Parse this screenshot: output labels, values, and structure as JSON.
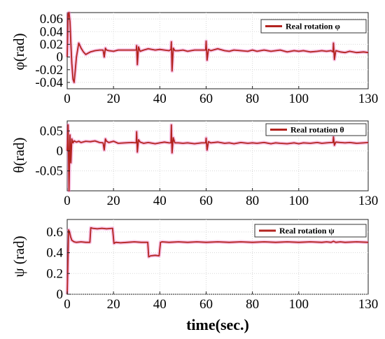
{
  "chart_data": [
    {
      "type": "line",
      "ylabel": "φ(rad)",
      "xlabel": "",
      "xlim": [
        0,
        130
      ],
      "ylim": [
        -0.05,
        0.07
      ],
      "xticks": [
        "0",
        "20",
        "40",
        "60",
        "80",
        "100",
        "130"
      ],
      "yticks": [
        "0.06",
        "0.04",
        "0.02",
        "0",
        "-0.02",
        "-0.04"
      ],
      "grid": true,
      "legend_position": "top-right",
      "series": [
        {
          "name": "Real rotation φ",
          "color": "#b3231f",
          "x": [
            0,
            0.4,
            0.8,
            1.2,
            1.6,
            2.0,
            2.5,
            3.0,
            3.5,
            4.0,
            5.0,
            6.0,
            7.0,
            8.0,
            9.0,
            10,
            12,
            14,
            15.5,
            16,
            16.5,
            17,
            18,
            20,
            22,
            25,
            28,
            29.8,
            30,
            30.3,
            30.8,
            31.5,
            33,
            35,
            38,
            40,
            42,
            44,
            44.8,
            45,
            45.3,
            45.8,
            46.5,
            48,
            50,
            52,
            55,
            58,
            59.8,
            60,
            60.4,
            61,
            62,
            65,
            68,
            70,
            72,
            75,
            78,
            80,
            82,
            85,
            88,
            90,
            92,
            95,
            98,
            100,
            102,
            105,
            108,
            110,
            112,
            114,
            114.8,
            115,
            115.4,
            116,
            118,
            120,
            122,
            125,
            128,
            130
          ],
          "y": [
            0.0,
            0.068,
            0.07,
            0.055,
            0.02,
            -0.01,
            -0.035,
            -0.04,
            -0.02,
            0.0,
            0.022,
            0.014,
            0.008,
            0.004,
            0.006,
            0.008,
            0.01,
            0.011,
            0.011,
            0.0,
            0.014,
            0.011,
            0.01,
            0.009,
            0.011,
            0.011,
            0.011,
            0.011,
            0.018,
            -0.012,
            0.016,
            0.009,
            0.011,
            0.013,
            0.011,
            0.012,
            0.011,
            0.01,
            0.012,
            0.024,
            -0.022,
            0.014,
            0.01,
            0.01,
            0.011,
            0.009,
            0.011,
            0.011,
            0.011,
            0.025,
            -0.005,
            0.012,
            0.01,
            0.013,
            0.01,
            0.009,
            0.011,
            0.01,
            0.009,
            0.011,
            0.009,
            0.011,
            0.009,
            0.01,
            0.011,
            0.008,
            0.01,
            0.009,
            0.01,
            0.008,
            0.009,
            0.01,
            0.009,
            0.01,
            0.008,
            0.022,
            -0.004,
            0.01,
            0.008,
            0.007,
            0.009,
            0.007,
            0.008,
            0.007
          ]
        }
      ]
    },
    {
      "type": "line",
      "ylabel": "θ(rad)",
      "xlabel": "",
      "xlim": [
        0,
        130
      ],
      "ylim": [
        -0.1,
        0.075
      ],
      "xticks": [
        "0",
        "20",
        "40",
        "60",
        "80",
        "100",
        "130"
      ],
      "yticks": [
        "0.05",
        "0",
        "-0.05"
      ],
      "grid": true,
      "legend_position": "top-right",
      "series": [
        {
          "name": "Real rotation θ",
          "color": "#b3231f",
          "x": [
            0,
            0.4,
            0.8,
            1.2,
            1.6,
            2.0,
            2.5,
            3.0,
            4.0,
            5.0,
            6.0,
            8.0,
            10,
            12,
            14,
            15.5,
            16,
            16.5,
            17,
            18,
            20,
            22,
            25,
            28,
            29.8,
            30,
            30.3,
            30.8,
            31.5,
            33,
            35,
            38,
            40,
            42,
            44,
            44.8,
            45,
            45.3,
            45.8,
            46.5,
            48,
            50,
            52,
            55,
            58,
            59.8,
            60,
            60.4,
            61,
            62,
            65,
            68,
            70,
            72,
            75,
            78,
            80,
            82,
            85,
            88,
            90,
            92,
            95,
            98,
            100,
            102,
            105,
            108,
            110,
            112,
            114,
            114.8,
            115,
            115.4,
            116,
            118,
            120,
            122,
            125,
            128,
            130
          ],
          "y": [
            0.0,
            0.065,
            -0.1,
            0.04,
            -0.03,
            0.03,
            0.02,
            0.025,
            0.022,
            0.024,
            0.021,
            0.024,
            0.023,
            0.025,
            0.021,
            0.02,
            0.002,
            0.03,
            0.024,
            0.021,
            0.024,
            0.019,
            0.02,
            0.021,
            0.02,
            0.048,
            -0.003,
            0.028,
            0.022,
            0.019,
            0.021,
            0.018,
            0.02,
            0.022,
            0.02,
            0.02,
            0.065,
            -0.005,
            0.033,
            0.02,
            0.02,
            0.019,
            0.02,
            0.018,
            0.02,
            0.02,
            0.032,
            0.002,
            0.023,
            0.02,
            0.022,
            0.019,
            0.02,
            0.018,
            0.021,
            0.019,
            0.02,
            0.019,
            0.021,
            0.018,
            0.02,
            0.019,
            0.018,
            0.02,
            0.018,
            0.02,
            0.019,
            0.021,
            0.019,
            0.02,
            0.021,
            0.021,
            0.035,
            0.014,
            0.022,
            0.021,
            0.02,
            0.021,
            0.019,
            0.02,
            0.021
          ]
        }
      ]
    },
    {
      "type": "line",
      "ylabel": "ψ (rad)",
      "xlabel": "time(sec.)",
      "xlim": [
        0,
        130
      ],
      "ylim": [
        0,
        0.72
      ],
      "xticks": [
        "0",
        "20",
        "40",
        "60",
        "80",
        "100",
        "130"
      ],
      "yticks": [
        "0.6",
        "0.4",
        "0.2",
        "0"
      ],
      "grid": true,
      "legend_position": "top-right",
      "series": [
        {
          "name": "Real rotation ψ",
          "color": "#b3231f",
          "x": [
            0,
            0.3,
            0.6,
            1.0,
            1.5,
            2.0,
            3.0,
            4.0,
            6.0,
            8.0,
            9.8,
            10.2,
            11,
            13,
            15,
            17,
            19.6,
            20.2,
            21,
            23,
            26,
            29,
            32,
            34.8,
            35.2,
            36,
            38,
            39.7,
            40.3,
            41,
            44,
            48,
            52,
            56,
            60,
            65,
            70,
            75,
            80,
            85,
            90,
            95,
            100,
            105,
            110,
            112,
            114,
            115,
            116,
            118,
            120,
            125,
            130
          ],
          "y": [
            0.0,
            0.3,
            0.62,
            0.6,
            0.55,
            0.52,
            0.505,
            0.5,
            0.505,
            0.5,
            0.5,
            0.64,
            0.635,
            0.63,
            0.635,
            0.63,
            0.635,
            0.49,
            0.5,
            0.495,
            0.5,
            0.505,
            0.5,
            0.5,
            0.36,
            0.37,
            0.375,
            0.37,
            0.5,
            0.505,
            0.5,
            0.505,
            0.5,
            0.505,
            0.5,
            0.505,
            0.5,
            0.505,
            0.5,
            0.505,
            0.5,
            0.505,
            0.5,
            0.505,
            0.5,
            0.505,
            0.5,
            0.51,
            0.5,
            0.505,
            0.5,
            0.505,
            0.5
          ]
        }
      ]
    }
  ]
}
